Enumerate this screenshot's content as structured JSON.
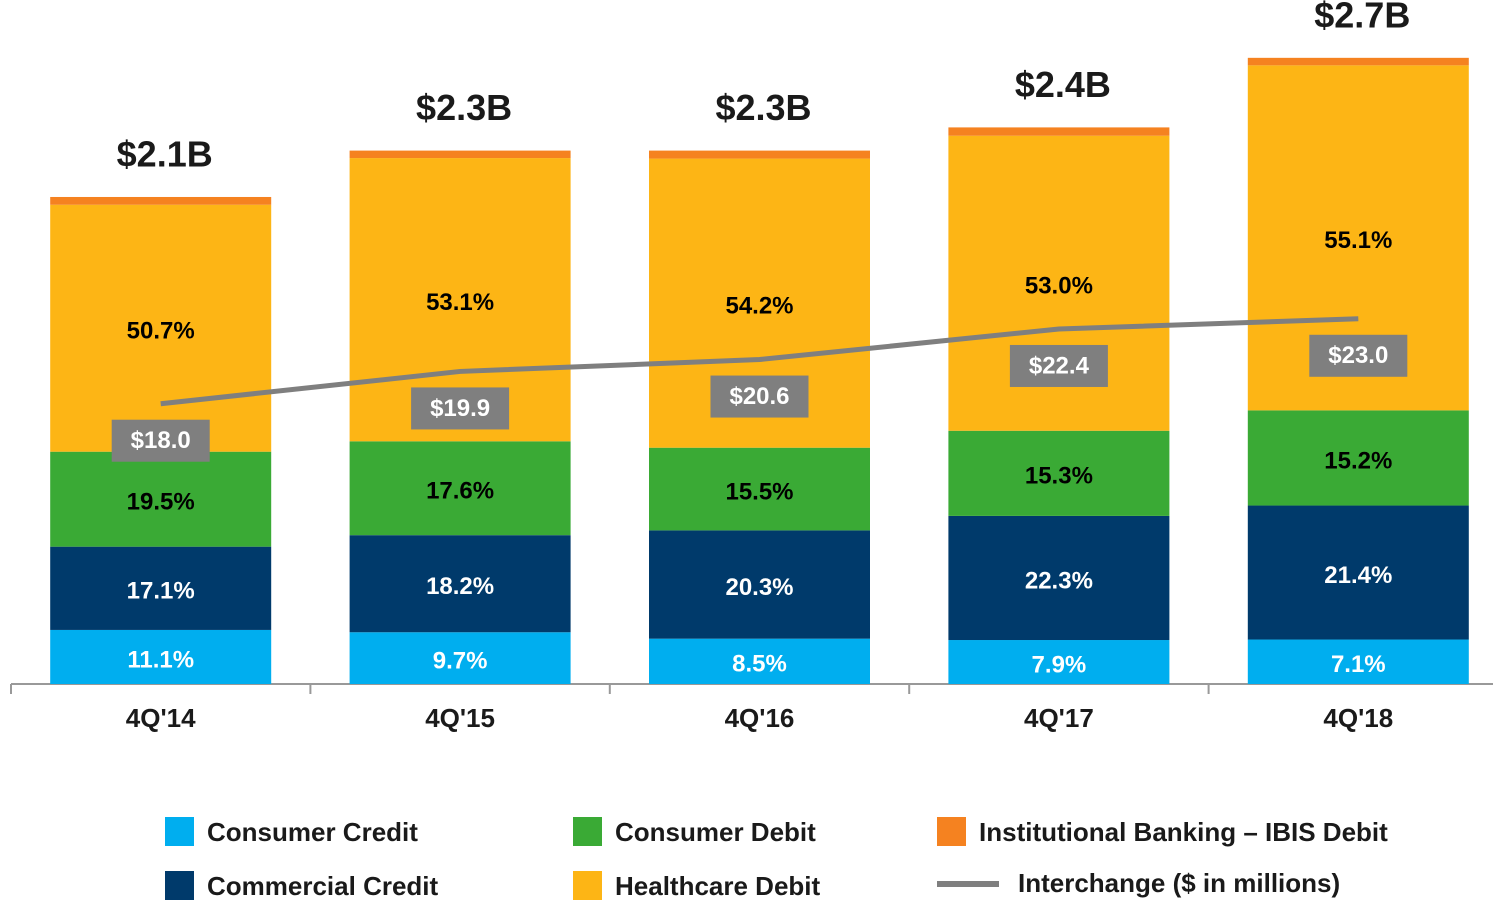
{
  "chart_data": {
    "type": "stacked_bar_line",
    "categories": [
      "4Q'14",
      "4Q'15",
      "4Q'16",
      "4Q'17",
      "4Q'18"
    ],
    "totals": {
      "values": [
        2.1,
        2.3,
        2.3,
        2.4,
        2.7
      ],
      "value_labels": [
        "$2.1B",
        "$2.3B",
        "$2.3B",
        "$2.4B",
        "$2.7B"
      ]
    },
    "ylim": [
      0,
      2.82
    ],
    "y2lim": [
      1.5,
      40
    ],
    "series": [
      {
        "name": "Consumer Credit",
        "color": "#00aeef",
        "label_color": "#ffffff",
        "values": [
          11.1,
          9.7,
          8.5,
          7.9,
          7.1
        ],
        "value_labels": [
          "11.1%",
          "9.7%",
          "8.5%",
          "7.9%",
          "7.1%"
        ]
      },
      {
        "name": "Commercial Credit",
        "color": "#003a6b",
        "label_color": "#ffffff",
        "values": [
          17.1,
          18.2,
          20.3,
          22.3,
          21.4
        ],
        "value_labels": [
          "17.1%",
          "18.2%",
          "20.3%",
          "22.3%",
          "21.4%"
        ]
      },
      {
        "name": "Consumer Debit",
        "color": "#3aaa35",
        "label_color": "#000000",
        "values": [
          19.5,
          17.6,
          15.5,
          15.3,
          15.2
        ],
        "value_labels": [
          "19.5%",
          "17.6%",
          "15.5%",
          "15.3%",
          "15.2%"
        ]
      },
      {
        "name": "Healthcare Debit",
        "color": "#fdb515",
        "label_color": "#000000",
        "values": [
          50.7,
          53.1,
          54.2,
          53.0,
          55.1
        ],
        "value_labels": [
          "50.7%",
          "53.1%",
          "54.2%",
          "53.0%",
          "55.1%"
        ]
      },
      {
        "name": "Institutional Banking – IBIS Debit",
        "color": "#f58220",
        "values": [
          1.6,
          1.4,
          1.5,
          1.5,
          1.2
        ]
      },
      {
        "name": "Interchange ($ in millions)",
        "color": "#7f7f7f",
        "axis": "y2",
        "type": "line",
        "values": [
          18.0,
          19.9,
          20.6,
          22.4,
          23.0
        ],
        "value_labels": [
          "$18.0",
          "$19.9",
          "$20.6",
          "$22.4",
          "$23.0"
        ]
      }
    ]
  }
}
